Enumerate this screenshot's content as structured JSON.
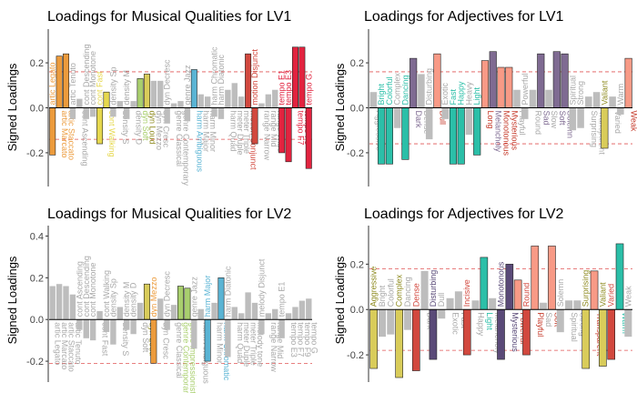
{
  "colors": {
    "grey": "#bdbdbd",
    "threshold": "#e05555",
    "highlight": {
      "teal": "#2bbfa8",
      "salmon": "#f89a86",
      "purple": "#7f6b92",
      "red": "#e2233f",
      "orange": "#ec9b3c",
      "yellow": "#e6d84e",
      "olive": "#d9cc5a",
      "green": "#a9cf6e",
      "sky": "#5ab4d4",
      "darkred": "#d2483e",
      "darkpurple": "#5a4a78"
    }
  },
  "chart_data": [
    {
      "type": "bar",
      "title": "Loadings for Musical Qualities for LV1",
      "ylabel": "Signed Loadings",
      "ylim": [
        -0.35,
        0.35
      ],
      "yticks": [
        -0.2,
        0.0,
        0.2
      ],
      "thresholds": [
        0.16,
        -0.14
      ],
      "categories": [
        "artic Legato",
        "artic Marcato",
        "artic Staccato",
        "artic Tenuto",
        "cont Ascending",
        "cont Descending",
        "cont Monotone",
        "cont Fast",
        "cont Walking",
        "density Sp",
        "density S",
        "density M",
        "density D",
        "dyn Soft",
        "dyn Loud",
        "dyn Mezzo",
        "dyn Cresc",
        "dyn Decresc",
        "genre Classical",
        "genre Contemporary",
        "genre Jazz",
        "harm Ambiguous",
        "harm Major",
        "harm Minor",
        "harm Chromatic",
        "harm Diatonic",
        "harm Quad",
        "meter Duple",
        "meter Triple",
        "motion Conjunct",
        "motion Disjunct",
        "range Narrow",
        "range Mid",
        "range Wide",
        "tempo E1",
        "tempo E3",
        "tempo F7",
        "tempo F9",
        "tempo G"
      ],
      "values": [
        -0.21,
        0.23,
        0.24,
        -0.05,
        0.04,
        -0.05,
        -0.04,
        -0.16,
        0.07,
        -0.04,
        0.03,
        -0.05,
        0.03,
        0.13,
        0.15,
        0.12,
        0.12,
        -0.07,
        0.02,
        0.03,
        -0.06,
        0.17,
        0.06,
        0.05,
        -0.04,
        -0.05,
        0.08,
        0.11,
        0.05,
        0.24,
        -0.16,
        0.02,
        0.06,
        0.08,
        -0.2,
        -0.24,
        0.27,
        0.27,
        -0.27
      ],
      "highlighted": {
        "0": "orange",
        "1": "orange",
        "2": "orange",
        "7": "yellow",
        "8": "yellow",
        "13": "green",
        "14": "olive",
        "21": "sky",
        "29": "darkred",
        "30": "darkred",
        "34": "red",
        "35": "red",
        "36": "red",
        "37": "red",
        "38": "red"
      }
    },
    {
      "type": "bar",
      "title": "Loadings for Adjectives for LV1",
      "ylabel": "Signed Loadings",
      "ylim": [
        -0.35,
        0.35
      ],
      "yticks": [
        -0.2,
        0.0,
        0.2
      ],
      "thresholds": [
        0.16,
        -0.16
      ],
      "categories": [
        "Aggressive",
        "Bright",
        "Colorful",
        "Complex",
        "Dancing",
        "Dark",
        "Dense",
        "Disturbing",
        "Dull",
        "Exotic",
        "Fast",
        "Happy",
        "Heavy",
        "Light",
        "Long",
        "Melancholy",
        "Monotonous",
        "Mysterious",
        "Playful",
        "Powerful",
        "Round",
        "Sad",
        "Slow",
        "Soft",
        "Solemn",
        "Spiritual",
        "Strong",
        "Surprising",
        "Transparent",
        "Valiant",
        "Varied",
        "Warm",
        "Weak"
      ],
      "values": [
        0.07,
        -0.25,
        -0.25,
        -0.09,
        -0.23,
        0.22,
        0.15,
        -0.14,
        0.24,
        -0.05,
        -0.25,
        -0.25,
        -0.12,
        -0.21,
        0.21,
        0.25,
        0.18,
        0.18,
        0.08,
        -0.05,
        0.08,
        0.24,
        0.08,
        0.25,
        0.24,
        -0.1,
        -0.09,
        0.05,
        0.07,
        -0.18,
        0.05,
        -0.03,
        0.22
      ],
      "highlighted": {
        "1": "teal",
        "2": "teal",
        "4": "teal",
        "5": "purple",
        "8": "salmon",
        "10": "teal",
        "11": "teal",
        "13": "teal",
        "14": "salmon",
        "15": "purple",
        "16": "salmon",
        "17": "salmon",
        "21": "purple",
        "23": "purple",
        "24": "purple",
        "29": "olive",
        "32": "salmon"
      }
    },
    {
      "type": "bar",
      "title": "Loadings for Musical Qualities for LV2",
      "ylabel": "Signed Loadings",
      "ylim": [
        -0.3,
        0.45
      ],
      "yticks": [
        -0.2,
        0.0,
        0.2,
        0.4
      ],
      "thresholds": [
        -0.21
      ],
      "categories": [
        "artic Legato",
        "artic Marcato",
        "artic Staccato",
        "artic Tenuto",
        "cont Ascending",
        "cont Descending",
        "cont Monotone",
        "cont Fast",
        "cont Walking",
        "density Sp",
        "density S",
        "density M",
        "density D",
        "dyn Soft",
        "dyn Loud",
        "dyn Mezzo",
        "dyn Cresc",
        "dyn Decresc",
        "genre Classical",
        "genre Contemporary",
        "genre Impressionist",
        "genre Jazz",
        "harm Ambiguous",
        "harm Major",
        "harm Minor",
        "harm Chromatic",
        "harm Diatonic",
        "harm Quad",
        "meter Duple",
        "meter Triple",
        "melody tone",
        "melody Disjunct",
        "range Narrow",
        "range Mid",
        "tempo E1",
        "tempo E3",
        "tempo F7",
        "tempo F9",
        "tempo G"
      ],
      "values": [
        0.16,
        0.17,
        0.16,
        0.12,
        -0.05,
        -0.09,
        -0.1,
        0.04,
        -0.06,
        -0.12,
        0.06,
        -0.05,
        -0.07,
        0.08,
        0.17,
        -0.21,
        0.1,
        -0.05,
        0.07,
        0.16,
        0.15,
        -0.14,
        0.05,
        -0.2,
        0.08,
        0.2,
        -0.18,
        0.06,
        0.03,
        0.13,
        0.08,
        -0.07,
        0.03,
        0.05,
        -0.09,
        0.03,
        0.06,
        0.09,
        0.1
      ],
      "highlighted": {
        "14": "olive",
        "15": "orange",
        "19": "green",
        "20": "green",
        "23": "sky",
        "25": "sky"
      }
    },
    {
      "type": "bar",
      "title": "Loadings for Adjectives for LV2",
      "ylabel": "Signed Loadings",
      "ylim": [
        -0.32,
        0.37
      ],
      "yticks": [
        -0.2,
        0.0,
        0.2
      ],
      "thresholds": [
        0.18,
        -0.18
      ],
      "categories": [
        "Aggressive",
        "Bright",
        "Colorful",
        "Complex",
        "Dancing",
        "Dense",
        "Dark",
        "Disturbing",
        "Dull",
        "Exotic",
        "Fast",
        "Incisive",
        "Happy",
        "Light",
        "Melancholy",
        "Monotonous",
        "Mysterious",
        "Powerful",
        "Round",
        "Playful",
        "Sad",
        "Soft",
        "Solemn",
        "Spiritual",
        "Strong",
        "Surprising",
        "Transparent",
        "Valiant",
        "Varied",
        "Warm",
        "Weak"
      ],
      "values": [
        -0.26,
        -0.12,
        -0.11,
        -0.3,
        -0.09,
        -0.27,
        0.17,
        -0.22,
        -0.04,
        0.05,
        0.08,
        -0.2,
        0.04,
        0.23,
        0.05,
        -0.22,
        0.2,
        0.13,
        -0.2,
        0.28,
        0.03,
        0.28,
        -0.1,
        0.04,
        0.04,
        -0.26,
        0.17,
        -0.25,
        -0.22,
        0.29,
        -0.12
      ],
      "highlighted": {
        "0": "olive",
        "3": "olive",
        "5": "darkred",
        "7": "darkpurple",
        "11": "darkred",
        "13": "teal",
        "15": "darkpurple",
        "16": "darkpurple",
        "17": "salmon",
        "18": "darkred",
        "19": "salmon",
        "21": "salmon",
        "25": "olive",
        "26": "salmon",
        "27": "olive",
        "28": "darkred",
        "29": "teal"
      }
    }
  ]
}
